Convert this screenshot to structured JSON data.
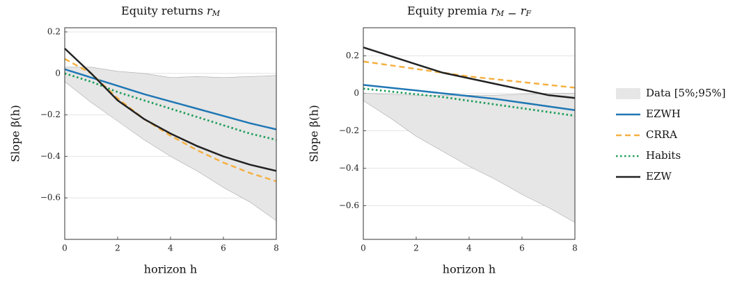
{
  "chart_data": [
    {
      "type": "line",
      "title": [
        "Equity returns ",
        "r",
        "M"
      ],
      "x_label": "horizon h",
      "y_label": "Slope β(h)",
      "x": [
        0,
        1,
        2,
        3,
        4,
        5,
        6,
        7,
        8
      ],
      "xlim": [
        0,
        8
      ],
      "xticks": [
        0,
        2,
        4,
        6,
        8
      ],
      "ylim": [
        -0.8,
        0.22
      ],
      "yticks": [
        0.2,
        0,
        {
          "value": -0.2,
          "label": "−0.2"
        },
        {
          "value": -0.4,
          "label": "−0.4"
        },
        {
          "value": -0.6,
          "label": "−0.6"
        }
      ],
      "grid": true,
      "band": {
        "name": "Data [5%;95%]",
        "color": "#e6e6e6",
        "upper": [
          0.03,
          0.03,
          0.01,
          0.0,
          -0.02,
          -0.015,
          -0.02,
          -0.015,
          -0.01
        ],
        "lower": [
          -0.04,
          -0.14,
          -0.23,
          -0.32,
          -0.4,
          -0.47,
          -0.55,
          -0.62,
          -0.71
        ]
      },
      "series": [
        {
          "name": "EZWH",
          "color": "#1f77b4",
          "dash": "solid",
          "values": [
            0.02,
            -0.02,
            -0.06,
            -0.1,
            -0.135,
            -0.17,
            -0.205,
            -0.24,
            -0.27
          ]
        },
        {
          "name": "CRRA",
          "color": "#f5b041",
          "dash": "dashed",
          "values": [
            0.07,
            0.0,
            -0.12,
            -0.22,
            -0.3,
            -0.37,
            -0.43,
            -0.48,
            -0.52
          ]
        },
        {
          "name": "Habits",
          "color": "#1e9e5a",
          "dash": "dotted",
          "values": [
            0.0,
            -0.04,
            -0.09,
            -0.13,
            -0.17,
            -0.21,
            -0.25,
            -0.29,
            -0.32
          ]
        },
        {
          "name": "EZW",
          "color": "#222222",
          "dash": "solid",
          "values": [
            0.12,
            0.0,
            -0.13,
            -0.22,
            -0.29,
            -0.35,
            -0.4,
            -0.44,
            -0.47
          ]
        }
      ]
    },
    {
      "type": "line",
      "title": [
        "Equity premia ",
        "r",
        "M",
        " − ",
        "r",
        "F"
      ],
      "x_label": "horizon h",
      "y_label": "Slope β(h)",
      "x": [
        0,
        1,
        2,
        3,
        4,
        5,
        6,
        7,
        8
      ],
      "xlim": [
        0,
        8
      ],
      "xticks": [
        0,
        2,
        4,
        6,
        8
      ],
      "ylim": [
        -0.78,
        0.35
      ],
      "yticks": [
        0.2,
        0,
        {
          "value": -0.2,
          "label": "−0.2"
        },
        {
          "value": -0.4,
          "label": "−0.4"
        },
        {
          "value": -0.6,
          "label": "−0.6"
        }
      ],
      "grid": true,
      "band": {
        "color": "#e6e6e6",
        "upper": [
          0.0,
          -0.005,
          -0.01,
          -0.01,
          -0.01,
          -0.01,
          -0.005,
          0.0,
          0.0
        ],
        "lower": [
          -0.04,
          -0.13,
          -0.23,
          -0.31,
          -0.39,
          -0.46,
          -0.54,
          -0.61,
          -0.69
        ]
      },
      "series": [
        {
          "color": "#1f77b4",
          "dash": "solid",
          "values": [
            0.045,
            0.03,
            0.015,
            0.0,
            -0.015,
            -0.03,
            -0.05,
            -0.07,
            -0.09
          ]
        },
        {
          "color": "#f5b041",
          "dash": "dashed",
          "values": [
            0.17,
            0.15,
            0.13,
            0.11,
            0.09,
            0.075,
            0.06,
            0.045,
            0.03
          ]
        },
        {
          "color": "#1e9e5a",
          "dash": "dotted",
          "values": [
            0.025,
            0.01,
            -0.005,
            -0.02,
            -0.04,
            -0.06,
            -0.08,
            -0.1,
            -0.12
          ]
        },
        {
          "color": "#222222",
          "dash": "solid",
          "values": [
            0.245,
            0.2,
            0.155,
            0.11,
            0.08,
            0.05,
            0.02,
            -0.01,
            -0.025
          ]
        }
      ]
    }
  ]
}
